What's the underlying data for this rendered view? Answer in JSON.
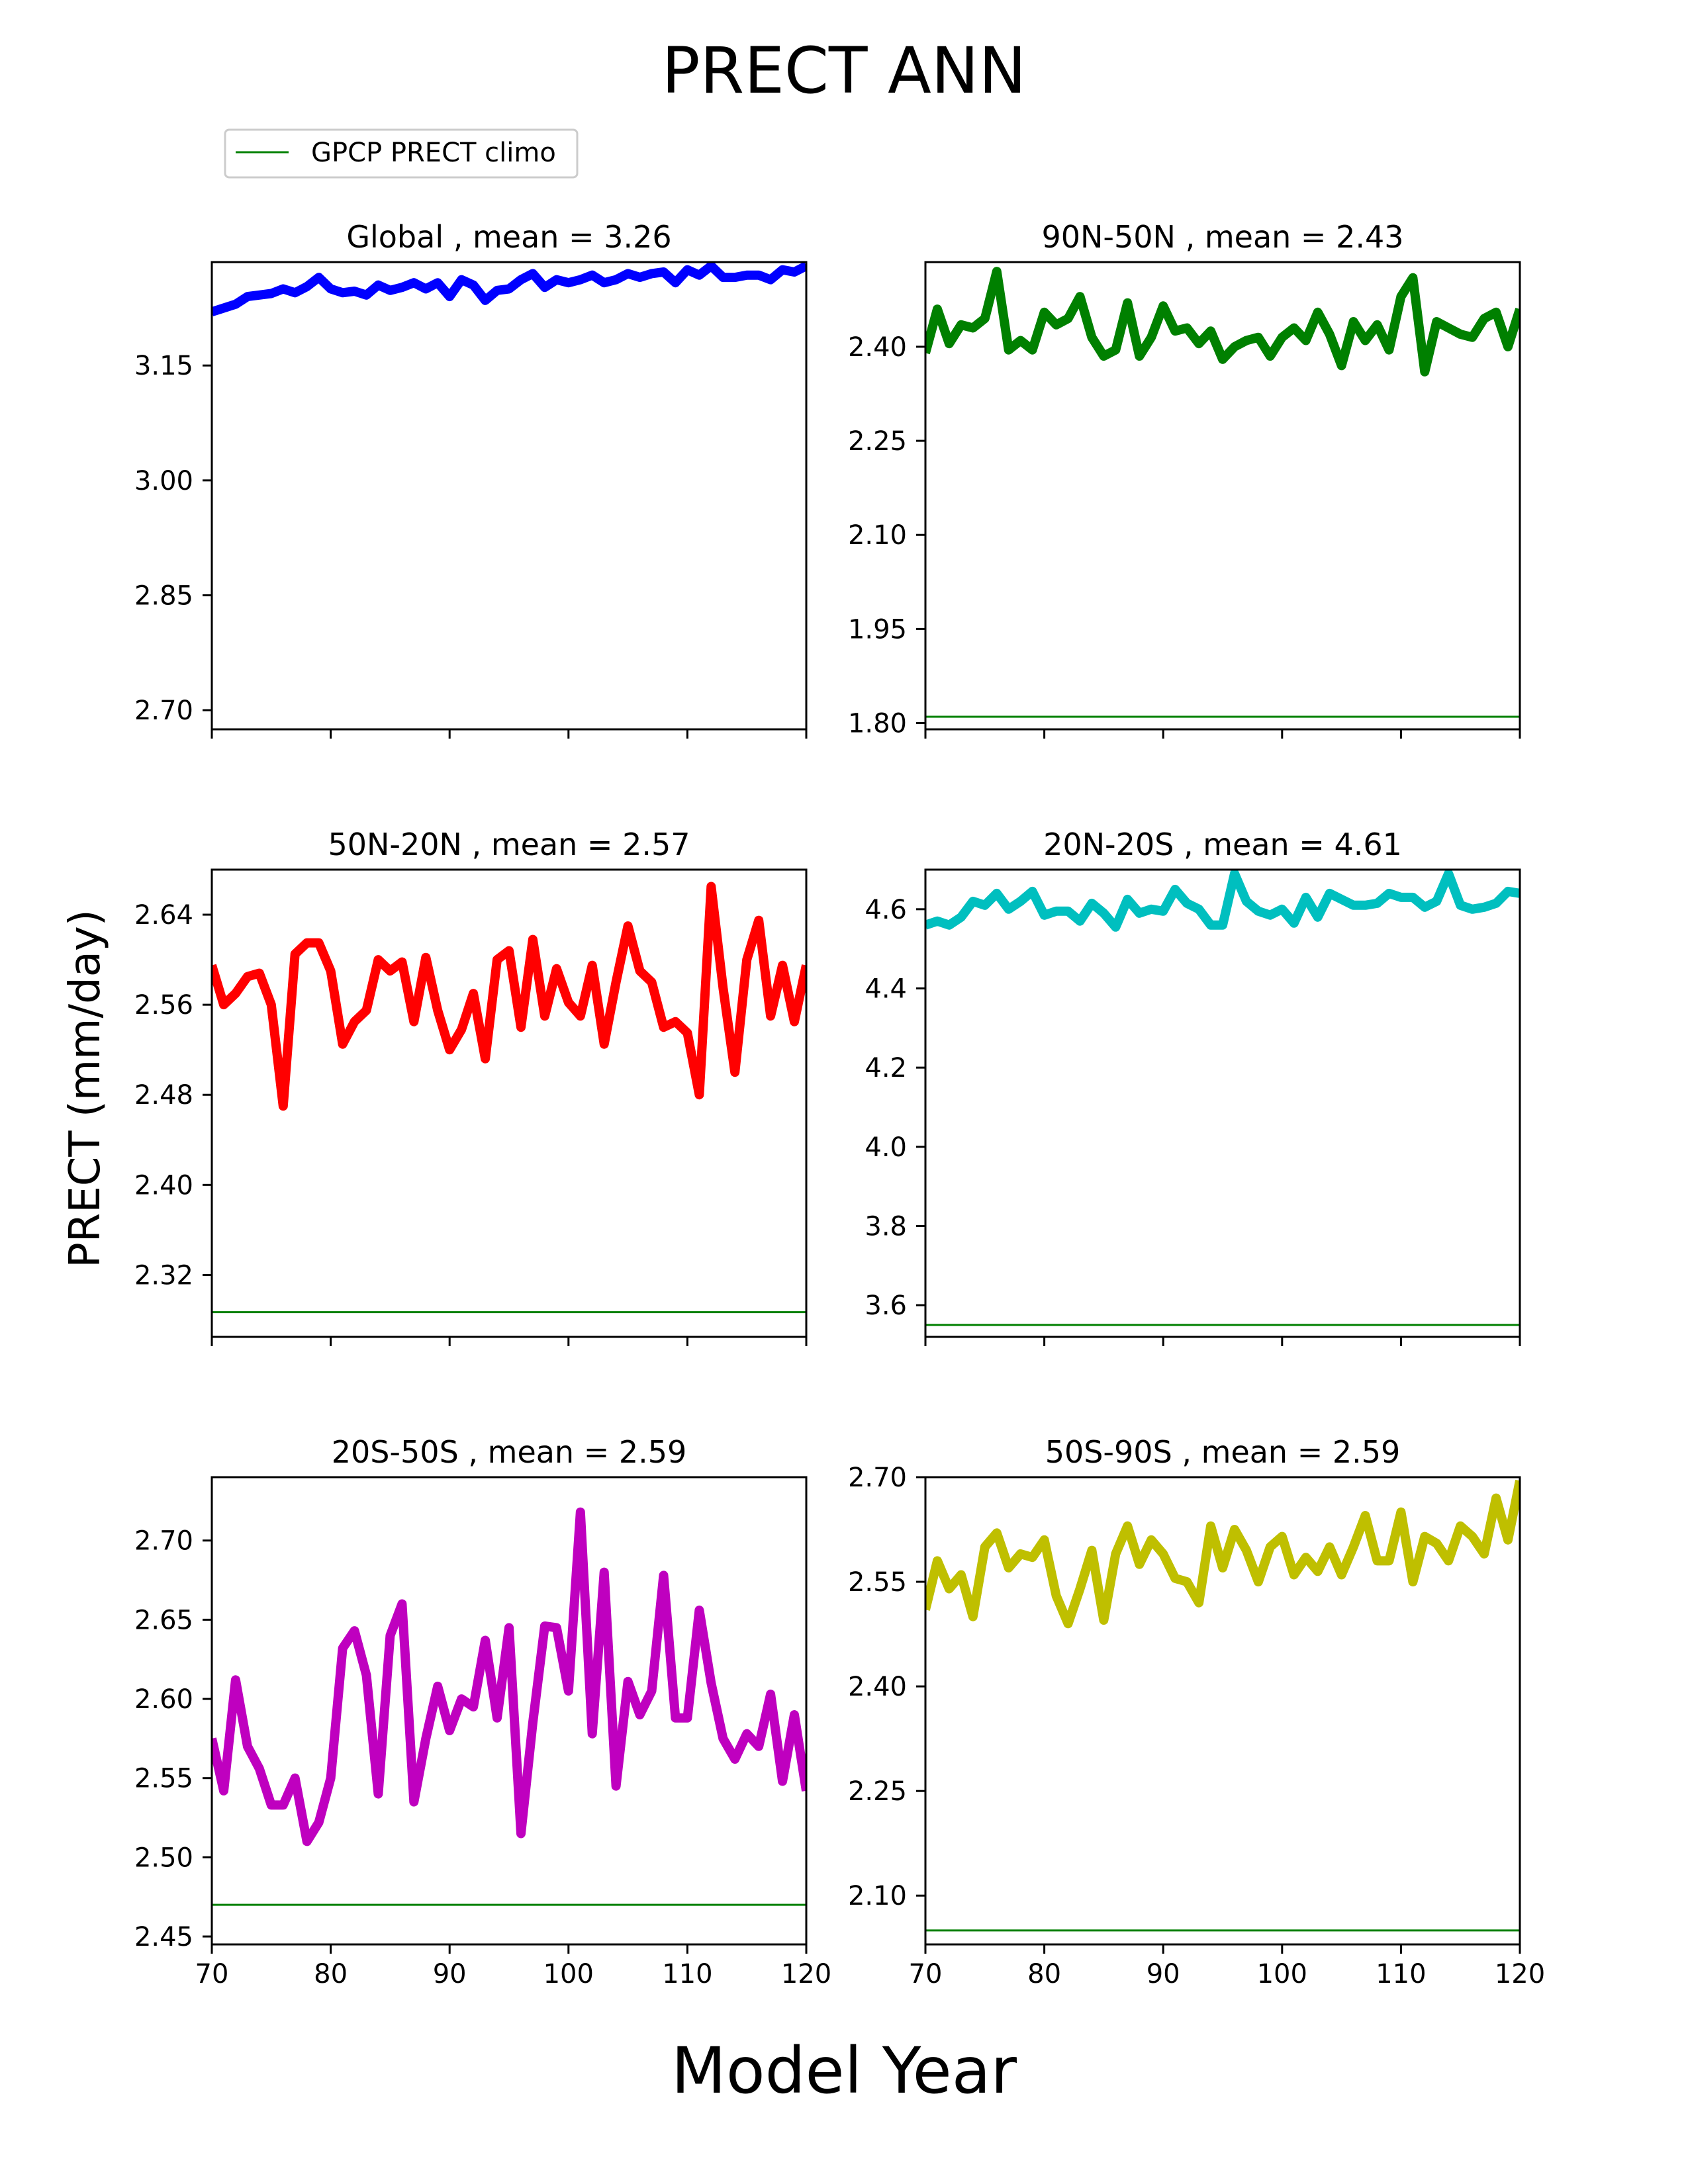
{
  "figure": {
    "title": "PRECT ANN",
    "xlabel": "Model Year",
    "ylabel": "PRECT (mm/day)",
    "legend": {
      "label": "GPCP PRECT climo",
      "color": "#008000",
      "placement": "top-left"
    }
  },
  "chart_data": [
    {
      "type": "line",
      "title": "Global , mean = 3.26",
      "color": "#0000ff",
      "xlim": [
        70,
        120
      ],
      "ylim": [
        2.675,
        3.285
      ],
      "yticks": [
        "3.15",
        "3.00",
        "2.85",
        "2.70"
      ],
      "xticks": [],
      "xtick_values": [
        70,
        80,
        90,
        100,
        110,
        120
      ],
      "climo": 2.675,
      "x": [
        70,
        71,
        72,
        73,
        74,
        75,
        76,
        77,
        78,
        79,
        80,
        81,
        82,
        83,
        84,
        85,
        86,
        87,
        88,
        89,
        90,
        91,
        92,
        93,
        94,
        95,
        96,
        97,
        98,
        99,
        100,
        101,
        102,
        103,
        104,
        105,
        106,
        107,
        108,
        109,
        110,
        111,
        112,
        113,
        114,
        115,
        116,
        117,
        118,
        119,
        120
      ],
      "values": [
        3.22,
        3.225,
        3.23,
        3.24,
        3.242,
        3.244,
        3.25,
        3.245,
        3.253,
        3.265,
        3.25,
        3.245,
        3.247,
        3.242,
        3.255,
        3.248,
        3.252,
        3.258,
        3.25,
        3.258,
        3.24,
        3.262,
        3.255,
        3.235,
        3.248,
        3.25,
        3.262,
        3.27,
        3.252,
        3.262,
        3.258,
        3.262,
        3.268,
        3.258,
        3.262,
        3.27,
        3.265,
        3.27,
        3.272,
        3.258,
        3.275,
        3.268,
        3.28,
        3.265,
        3.265,
        3.268,
        3.268,
        3.262,
        3.275,
        3.272,
        3.28
      ]
    },
    {
      "type": "line",
      "title": "90N-50N , mean = 2.43",
      "color": "#008000",
      "xlim": [
        70,
        120
      ],
      "ylim": [
        1.79,
        2.535
      ],
      "yticks": [
        "2.40",
        "2.25",
        "2.10",
        "1.95",
        "1.80"
      ],
      "xticks": [],
      "xtick_values": [
        70,
        80,
        90,
        100,
        110,
        120
      ],
      "climo": 1.81,
      "x": [
        70,
        71,
        72,
        73,
        74,
        75,
        76,
        77,
        78,
        79,
        80,
        81,
        82,
        83,
        84,
        85,
        86,
        87,
        88,
        89,
        90,
        91,
        92,
        93,
        94,
        95,
        96,
        97,
        98,
        99,
        100,
        101,
        102,
        103,
        104,
        105,
        106,
        107,
        108,
        109,
        110,
        111,
        112,
        113,
        114,
        115,
        116,
        117,
        118,
        119,
        120
      ],
      "values": [
        2.39,
        2.46,
        2.405,
        2.435,
        2.43,
        2.445,
        2.52,
        2.395,
        2.41,
        2.395,
        2.455,
        2.435,
        2.445,
        2.48,
        2.415,
        2.385,
        2.395,
        2.47,
        2.385,
        2.415,
        2.465,
        2.425,
        2.43,
        2.405,
        2.425,
        2.38,
        2.4,
        2.41,
        2.415,
        2.385,
        2.415,
        2.43,
        2.41,
        2.455,
        2.42,
        2.37,
        2.44,
        2.41,
        2.435,
        2.395,
        2.48,
        2.51,
        2.36,
        2.44,
        2.43,
        2.42,
        2.415,
        2.445,
        2.455,
        2.4,
        2.46
      ]
    },
    {
      "type": "line",
      "title": "50N-20N , mean = 2.57",
      "color": "#ff0000",
      "xlim": [
        70,
        120
      ],
      "ylim": [
        2.265,
        2.68
      ],
      "yticks": [
        "2.64",
        "2.56",
        "2.48",
        "2.40",
        "2.32"
      ],
      "xticks": [],
      "xtick_values": [
        70,
        80,
        90,
        100,
        110,
        120
      ],
      "climo": 2.287,
      "x": [
        70,
        71,
        72,
        73,
        74,
        75,
        76,
        77,
        78,
        79,
        80,
        81,
        82,
        83,
        84,
        85,
        86,
        87,
        88,
        89,
        90,
        91,
        92,
        93,
        94,
        95,
        96,
        97,
        98,
        99,
        100,
        101,
        102,
        103,
        104,
        105,
        106,
        107,
        108,
        109,
        110,
        111,
        112,
        113,
        114,
        115,
        116,
        117,
        118,
        119,
        120
      ],
      "values": [
        2.595,
        2.56,
        2.57,
        2.585,
        2.588,
        2.56,
        2.47,
        2.605,
        2.615,
        2.615,
        2.59,
        2.525,
        2.545,
        2.555,
        2.6,
        2.59,
        2.598,
        2.545,
        2.602,
        2.555,
        2.52,
        2.538,
        2.57,
        2.512,
        2.6,
        2.608,
        2.54,
        2.618,
        2.55,
        2.592,
        2.562,
        2.55,
        2.595,
        2.525,
        2.58,
        2.63,
        2.59,
        2.58,
        2.54,
        2.545,
        2.535,
        2.48,
        2.665,
        2.575,
        2.5,
        2.6,
        2.635,
        2.55,
        2.595,
        2.545,
        2.595
      ]
    },
    {
      "type": "line",
      "title": "20N-20S , mean = 4.61",
      "color": "#00bfbf",
      "xlim": [
        70,
        120
      ],
      "ylim": [
        3.52,
        4.7
      ],
      "yticks": [
        "4.6",
        "4.4",
        "4.2",
        "4.0",
        "3.8",
        "3.6"
      ],
      "xticks": [],
      "xtick_values": [
        70,
        80,
        90,
        100,
        110,
        120
      ],
      "climo": 3.55,
      "x": [
        70,
        71,
        72,
        73,
        74,
        75,
        76,
        77,
        78,
        79,
        80,
        81,
        82,
        83,
        84,
        85,
        86,
        87,
        88,
        89,
        90,
        91,
        92,
        93,
        94,
        95,
        96,
        97,
        98,
        99,
        100,
        101,
        102,
        103,
        104,
        105,
        106,
        107,
        108,
        109,
        110,
        111,
        112,
        113,
        114,
        115,
        116,
        117,
        118,
        119,
        120
      ],
      "values": [
        4.56,
        4.57,
        4.56,
        4.58,
        4.62,
        4.61,
        4.64,
        4.6,
        4.62,
        4.645,
        4.585,
        4.595,
        4.595,
        4.57,
        4.615,
        4.59,
        4.555,
        4.625,
        4.59,
        4.6,
        4.595,
        4.65,
        4.615,
        4.6,
        4.56,
        4.56,
        4.69,
        4.62,
        4.595,
        4.585,
        4.6,
        4.565,
        4.63,
        4.58,
        4.64,
        4.625,
        4.61,
        4.61,
        4.615,
        4.64,
        4.63,
        4.63,
        4.605,
        4.62,
        4.69,
        4.61,
        4.6,
        4.605,
        4.615,
        4.645,
        4.64
      ]
    },
    {
      "type": "line",
      "title": "20S-50S , mean = 2.59",
      "color": "#bf00bf",
      "xlim": [
        70,
        120
      ],
      "ylim": [
        2.445,
        2.74
      ],
      "yticks": [
        "2.70",
        "2.65",
        "2.60",
        "2.55",
        "2.50",
        "2.45"
      ],
      "xticks": [
        "70",
        "80",
        "90",
        "100",
        "110",
        "120"
      ],
      "xtick_values": [
        70,
        80,
        90,
        100,
        110,
        120
      ],
      "climo": 2.47,
      "x": [
        70,
        71,
        72,
        73,
        74,
        75,
        76,
        77,
        78,
        79,
        80,
        81,
        82,
        83,
        84,
        85,
        86,
        87,
        88,
        89,
        90,
        91,
        92,
        93,
        94,
        95,
        96,
        97,
        98,
        99,
        100,
        101,
        102,
        103,
        104,
        105,
        106,
        107,
        108,
        109,
        110,
        111,
        112,
        113,
        114,
        115,
        116,
        117,
        118,
        119,
        120
      ],
      "values": [
        2.575,
        2.542,
        2.612,
        2.57,
        2.556,
        2.533,
        2.533,
        2.55,
        2.51,
        2.522,
        2.55,
        2.632,
        2.643,
        2.615,
        2.54,
        2.64,
        2.66,
        2.535,
        2.575,
        2.608,
        2.58,
        2.6,
        2.595,
        2.637,
        2.588,
        2.645,
        2.515,
        2.585,
        2.646,
        2.645,
        2.605,
        2.718,
        2.578,
        2.68,
        2.545,
        2.611,
        2.59,
        2.605,
        2.678,
        2.588,
        2.588,
        2.656,
        2.61,
        2.575,
        2.562,
        2.578,
        2.57,
        2.603,
        2.548,
        2.59,
        2.542
      ]
    },
    {
      "type": "line",
      "title": "50S-90S , mean = 2.59",
      "color": "#bfbf00",
      "xlim": [
        70,
        120
      ],
      "ylim": [
        2.03,
        2.7
      ],
      "yticks": [
        "2.70",
        "2.55",
        "2.40",
        "2.25",
        "2.10"
      ],
      "xticks": [
        "70",
        "80",
        "90",
        "100",
        "110",
        "120"
      ],
      "xtick_values": [
        70,
        80,
        90,
        100,
        110,
        120
      ],
      "climo": 2.05,
      "x": [
        70,
        71,
        72,
        73,
        74,
        75,
        76,
        77,
        78,
        79,
        80,
        81,
        82,
        83,
        84,
        85,
        86,
        87,
        88,
        89,
        90,
        91,
        92,
        93,
        94,
        95,
        96,
        97,
        98,
        99,
        100,
        101,
        102,
        103,
        104,
        105,
        106,
        107,
        108,
        109,
        110,
        111,
        112,
        113,
        114,
        115,
        116,
        117,
        118,
        119,
        120
      ],
      "values": [
        2.51,
        2.58,
        2.54,
        2.56,
        2.5,
        2.6,
        2.62,
        2.57,
        2.59,
        2.585,
        2.61,
        2.53,
        2.49,
        2.54,
        2.595,
        2.495,
        2.59,
        2.63,
        2.575,
        2.61,
        2.59,
        2.555,
        2.55,
        2.52,
        2.63,
        2.57,
        2.625,
        2.595,
        2.55,
        2.6,
        2.615,
        2.56,
        2.585,
        2.565,
        2.6,
        2.56,
        2.6,
        2.645,
        2.58,
        2.58,
        2.65,
        2.55,
        2.615,
        2.605,
        2.58,
        2.63,
        2.615,
        2.59,
        2.67,
        2.61,
        2.695
      ]
    }
  ]
}
